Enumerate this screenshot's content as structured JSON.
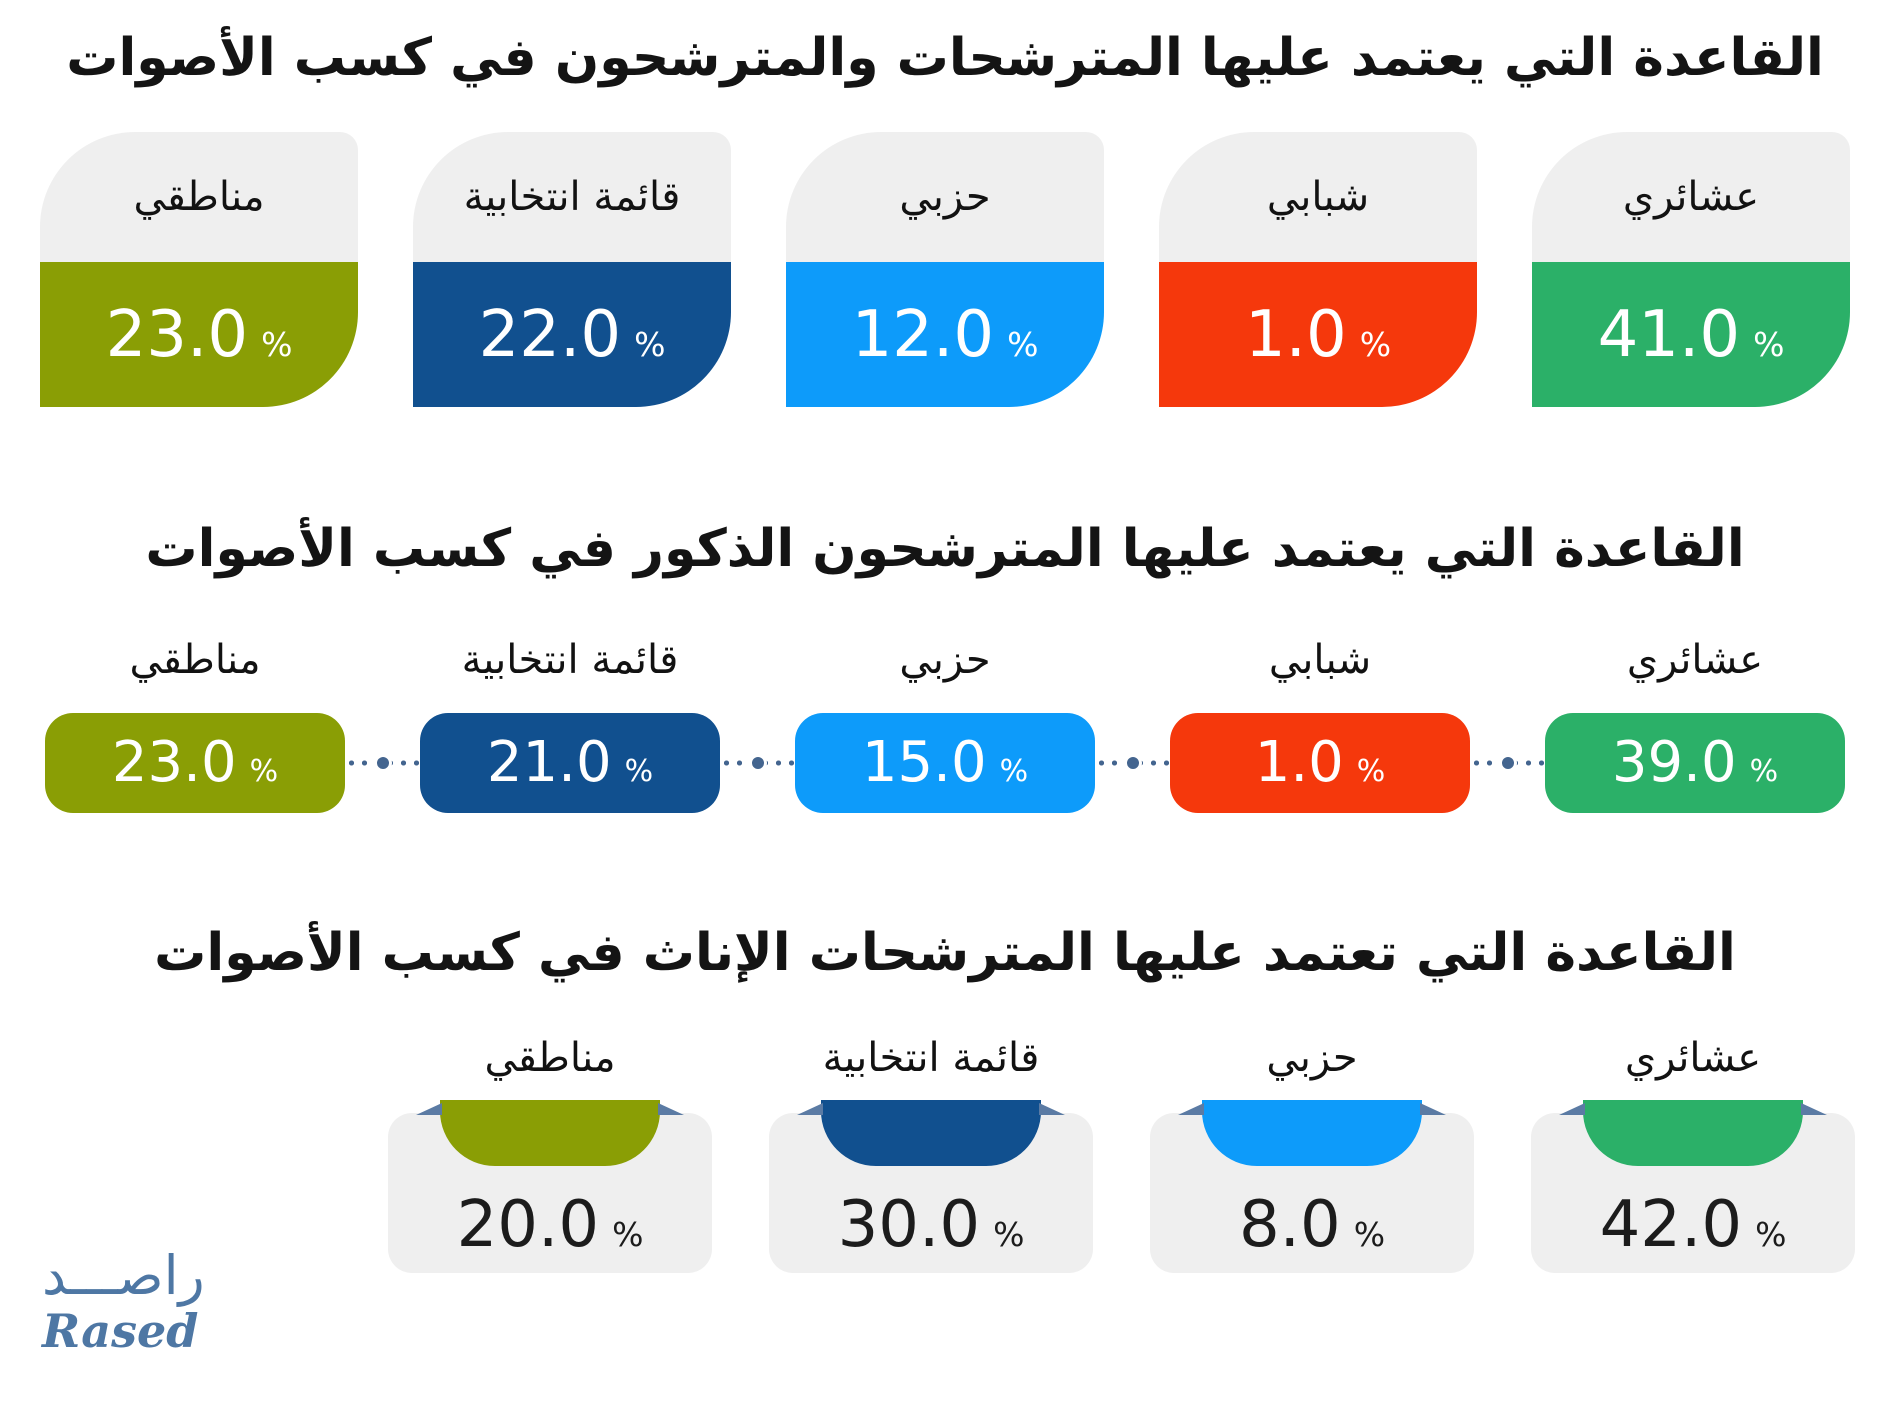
{
  "page": {
    "background": "#ffffff",
    "text_color": "#141414"
  },
  "colors": {
    "card_gray": "#efefef",
    "connector_slate": "#44658f",
    "ribbon_fold": "#5b7ba4",
    "logo_blue": "#4e77a4",
    "clan_green": "#2bb068",
    "youth_red": "#f5380c",
    "party_lightblue": "#0d9bfa",
    "list_darkblue": "#11508f",
    "regional_olive": "#8a9e05"
  },
  "sections": [
    {
      "title": "القاعدة التي يعتمد عليها المترشحات والمترشحون في كسب الأصوات",
      "style": "split-cards",
      "unit": "%",
      "items": [
        {
          "label": "عشائري",
          "value": "41.0",
          "color": "#2bb068"
        },
        {
          "label": "شبابي",
          "value": "1.0",
          "color": "#f5380c"
        },
        {
          "label": "حزبي",
          "value": "12.0",
          "color": "#0d9bfa"
        },
        {
          "label": "قائمة انتخابية",
          "value": "22.0",
          "color": "#11508f"
        },
        {
          "label": "مناطقي",
          "value": "23.0",
          "color": "#8a9e05"
        }
      ]
    },
    {
      "title": "القاعدة التي يعتمد عليها المترشحون الذكور في كسب الأصوات",
      "style": "pills",
      "unit": "%",
      "connector_icon": "bullseye-dotted-line",
      "items": [
        {
          "label": "عشائري",
          "value": "39.0",
          "color": "#2bb068"
        },
        {
          "label": "شبابي",
          "value": "1.0",
          "color": "#f5380c"
        },
        {
          "label": "حزبي",
          "value": "15.0",
          "color": "#0d9bfa"
        },
        {
          "label": "قائمة انتخابية",
          "value": "21.0",
          "color": "#11508f"
        },
        {
          "label": "مناطقي",
          "value": "23.0",
          "color": "#8a9e05"
        }
      ]
    },
    {
      "title": "القاعدة التي تعتمد عليها المترشحات الإناث في كسب الأصوات",
      "style": "bowl-cards",
      "unit": "%",
      "items": [
        {
          "label": "عشائري",
          "value": "42.0",
          "color": "#2bb068"
        },
        {
          "label": "حزبي",
          "value": "8.0",
          "color": "#0d9bfa"
        },
        {
          "label": "قائمة انتخابية",
          "value": "30.0",
          "color": "#11508f"
        },
        {
          "label": "مناطقي",
          "value": "20.0",
          "color": "#8a9e05"
        }
      ]
    }
  ],
  "logo": {
    "arabic": "راصـــد",
    "latin": "Rased"
  },
  "chart_data": [
    {
      "type": "bar",
      "title": "القاعدة التي يعتمد عليها المترشحات والمترشحون في كسب الأصوات",
      "categories": [
        "عشائري",
        "شبابي",
        "حزبي",
        "قائمة انتخابية",
        "مناطقي"
      ],
      "values": [
        41.0,
        1.0,
        12.0,
        22.0,
        23.0
      ],
      "unit": "%",
      "xlabel": "",
      "ylabel": "",
      "ylim": [
        0,
        100
      ],
      "layout": "category cards right-to-left, value label on each card"
    },
    {
      "type": "bar",
      "title": "القاعدة التي يعتمد عليها المترشحون الذكور في كسب الأصوات",
      "categories": [
        "عشائري",
        "شبابي",
        "حزبي",
        "قائمة انتخابية",
        "مناطقي"
      ],
      "values": [
        39.0,
        1.0,
        15.0,
        21.0,
        23.0
      ],
      "unit": "%",
      "xlabel": "",
      "ylabel": "",
      "ylim": [
        0,
        100
      ],
      "layout": "pills connected by dotted line with bullseye markers, right-to-left"
    },
    {
      "type": "bar",
      "title": "القاعدة التي تعتمد عليها المترشحات الإناث في كسب الأصوات",
      "categories": [
        "عشائري",
        "حزبي",
        "قائمة انتخابية",
        "مناطقي"
      ],
      "values": [
        42.0,
        8.0,
        30.0,
        20.0
      ],
      "unit": "%",
      "xlabel": "",
      "ylabel": "",
      "ylim": [
        0,
        100
      ],
      "layout": "gray cards with colored ribbon bowl at top, right-to-left"
    }
  ]
}
